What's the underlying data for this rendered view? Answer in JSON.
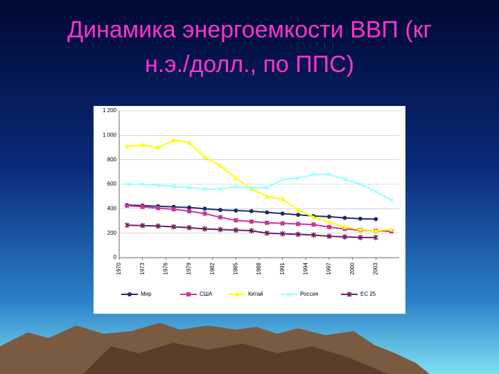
{
  "chart_data": {
    "type": "line",
    "title": "Динамика энергоемкости ВВП (кг н.э./долл., по ППС)",
    "x": [
      1971,
      1973,
      1975,
      1977,
      1979,
      1981,
      1983,
      1985,
      1987,
      1989,
      1991,
      1993,
      1995,
      1997,
      1999,
      2001,
      2003,
      2005
    ],
    "series": [
      {
        "name": "Мир",
        "color": "#1f2d6b",
        "marker": "circle",
        "values": [
          430,
          425,
          420,
          415,
          410,
          400,
          390,
          385,
          380,
          370,
          360,
          350,
          340,
          335,
          325,
          318,
          315,
          null
        ]
      },
      {
        "name": "США",
        "color": "#cc3399",
        "marker": "square",
        "values": [
          425,
          415,
          405,
          395,
          380,
          360,
          330,
          305,
          295,
          285,
          280,
          275,
          270,
          250,
          235,
          225,
          220,
          215
        ]
      },
      {
        "name": "Китай",
        "color": "#ffff00",
        "marker": "triangle",
        "values": [
          910,
          920,
          900,
          960,
          940,
          820,
          750,
          650,
          560,
          500,
          480,
          390,
          330,
          290,
          250,
          230,
          220,
          230
        ]
      },
      {
        "name": "Россия",
        "color": "#99ffff",
        "marker": "cross",
        "values": [
          600,
          600,
          590,
          580,
          570,
          560,
          560,
          580,
          570,
          570,
          640,
          650,
          680,
          680,
          640,
          600,
          540,
          470
        ]
      },
      {
        "name": "ЕС 25",
        "color": "#6b1f5e",
        "marker": "star",
        "values": [
          265,
          262,
          258,
          252,
          245,
          235,
          230,
          225,
          220,
          200,
          195,
          190,
          185,
          175,
          170,
          165,
          165,
          null
        ]
      }
    ],
    "xlim": [
      1970,
      2006
    ],
    "xticks": [
      1970,
      1973,
      1976,
      1979,
      1982,
      1985,
      1988,
      1991,
      1994,
      1997,
      2000,
      2003
    ],
    "ylim": [
      0,
      1200
    ],
    "yticks": [
      0,
      200,
      400,
      600,
      800,
      {
        "value": 1000,
        "label": "1 000"
      },
      {
        "value": 1200,
        "label": "1 200"
      }
    ],
    "grid": true
  }
}
